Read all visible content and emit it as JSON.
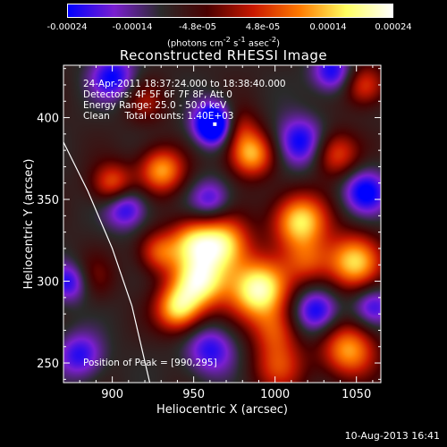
{
  "colorbar": {
    "tick_labels": [
      "-0.00024",
      "-0.00014",
      "-4.8e-05",
      "4.8e-05",
      "0.00014",
      "0.00024"
    ],
    "units_text": "(photons cm",
    "units_exp1": "-2",
    "units_mid": " s",
    "units_exp2": "-1",
    "units_mid2": " asec",
    "units_exp3": "-2",
    "units_end": ")",
    "colors": [
      "#0000ff",
      "#7a1fd0",
      "#2a2a2a",
      "#4a0000",
      "#c81800",
      "#ff7a00",
      "#ffff60",
      "#ffffff"
    ]
  },
  "chart_data": {
    "type": "heatmap",
    "title": "Reconstructed RHESSI Image",
    "xlabel": "Heliocentric X (arcsec)",
    "ylabel": "Heliocentric Y (arcsec)",
    "xlim": [
      870,
      1065
    ],
    "ylim": [
      238,
      432
    ],
    "x_ticks": [
      900,
      950,
      1000,
      1050
    ],
    "y_ticks": [
      250,
      300,
      350,
      400
    ],
    "annotations": [
      "24-Apr-2011 18:37:24.000 to 18:38:40.000",
      "Detectors: 4F 5F 6F 7F 8F, Att 0",
      "Energy Range: 25.0 - 50.0 keV",
      "Clean     Total counts: 1.40E+03"
    ],
    "peak_label": "Position of Peak = [990,295]",
    "peak": [
      990,
      295
    ],
    "limb_curve": [
      [
        870,
        385
      ],
      [
        885,
        355
      ],
      [
        900,
        320
      ],
      [
        912,
        285
      ],
      [
        923,
        238
      ]
    ],
    "blobs": [
      {
        "x": 990,
        "y": 295,
        "v": 1.0,
        "s": 13
      },
      {
        "x": 953,
        "y": 300,
        "v": 0.9,
        "s": 12
      },
      {
        "x": 940,
        "y": 283,
        "v": 0.75,
        "s": 10
      },
      {
        "x": 967,
        "y": 323,
        "v": 0.85,
        "s": 12
      },
      {
        "x": 948,
        "y": 325,
        "v": 0.55,
        "s": 10
      },
      {
        "x": 1015,
        "y": 337,
        "v": 0.85,
        "s": 12
      },
      {
        "x": 1048,
        "y": 312,
        "v": 0.8,
        "s": 12
      },
      {
        "x": 1045,
        "y": 258,
        "v": 0.7,
        "s": 12
      },
      {
        "x": 1002,
        "y": 248,
        "v": 0.45,
        "s": 12
      },
      {
        "x": 930,
        "y": 368,
        "v": 0.7,
        "s": 10
      },
      {
        "x": 985,
        "y": 378,
        "v": 0.75,
        "s": 10
      },
      {
        "x": 975,
        "y": 395,
        "v": 0.45,
        "s": 9
      },
      {
        "x": 1037,
        "y": 378,
        "v": 0.55,
        "s": 10
      },
      {
        "x": 900,
        "y": 360,
        "v": 0.55,
        "s": 9
      },
      {
        "x": 1020,
        "y": 312,
        "v": 0.4,
        "s": 10
      },
      {
        "x": 885,
        "y": 302,
        "v": 0.35,
        "s": 10
      },
      {
        "x": 1055,
        "y": 420,
        "v": 0.5,
        "s": 9
      },
      {
        "x": 920,
        "y": 410,
        "v": 0.3,
        "s": 9
      },
      {
        "x": 1000,
        "y": 270,
        "v": 0.4,
        "s": 10
      },
      {
        "x": 928,
        "y": 318,
        "v": 0.5,
        "s": 9
      },
      {
        "x": 963,
        "y": 396,
        "v": -1.0,
        "s": 9
      },
      {
        "x": 875,
        "y": 300,
        "v": -0.6,
        "s": 9
      },
      {
        "x": 1015,
        "y": 385,
        "v": -0.55,
        "s": 11
      },
      {
        "x": 1055,
        "y": 355,
        "v": -0.55,
        "s": 10
      },
      {
        "x": 1025,
        "y": 282,
        "v": -0.55,
        "s": 10
      },
      {
        "x": 900,
        "y": 425,
        "v": -0.5,
        "s": 10
      },
      {
        "x": 908,
        "y": 345,
        "v": -0.5,
        "s": 9
      },
      {
        "x": 960,
        "y": 258,
        "v": -0.45,
        "s": 11
      },
      {
        "x": 1035,
        "y": 428,
        "v": -0.5,
        "s": 9
      },
      {
        "x": 880,
        "y": 255,
        "v": -0.45,
        "s": 10
      },
      {
        "x": 960,
        "y": 350,
        "v": -0.4,
        "s": 9
      },
      {
        "x": 1060,
        "y": 285,
        "v": -0.4,
        "s": 9
      }
    ]
  },
  "footer": {
    "timestamp": "10-Aug-2013 16:41"
  }
}
